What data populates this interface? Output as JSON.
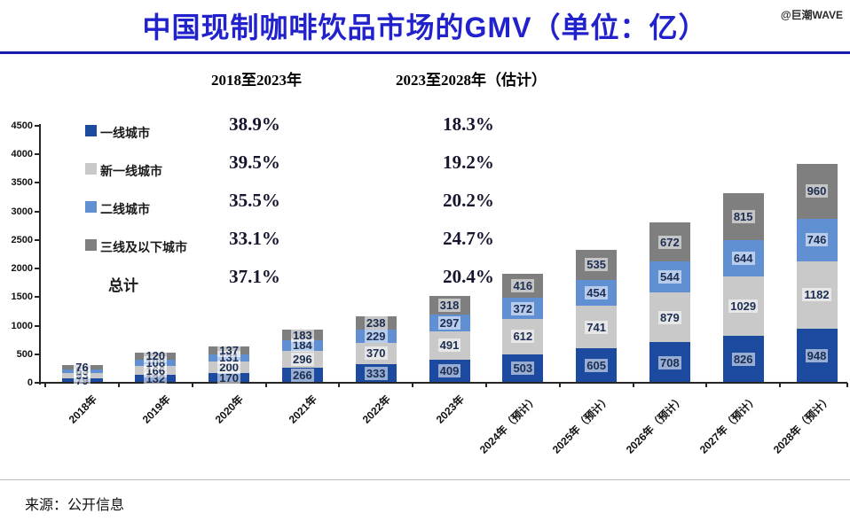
{
  "title": "中国现制咖啡饮品市场的GMV（单位：亿）",
  "watermark": "@巨潮WAVE",
  "source": "来源：公开信息",
  "cagr_table": {
    "col1_header": "2018至2023年",
    "col2_header": "2023至2028年（估计）",
    "rows": [
      {
        "label": "一线城市",
        "swatch": "#1B4A9E",
        "cagr_2018_2023": "38.9%",
        "cagr_2023_2028": "18.3%"
      },
      {
        "label": "新一线城市",
        "swatch": "#C9C9C9",
        "cagr_2018_2023": "39.5%",
        "cagr_2023_2028": "19.2%"
      },
      {
        "label": "二线城市",
        "swatch": "#6190D2",
        "cagr_2018_2023": "35.5%",
        "cagr_2023_2028": "20.2%"
      },
      {
        "label": "三线及以下城市",
        "swatch": "#7F7F7F",
        "cagr_2018_2023": "33.1%",
        "cagr_2023_2028": "24.7%"
      },
      {
        "label": "总计",
        "swatch": null,
        "cagr_2018_2023": "37.1%",
        "cagr_2023_2028": "20.4%"
      }
    ]
  },
  "chart_data": {
    "type": "bar",
    "stacked": true,
    "title": "中国现制咖啡饮品市场的GMV（单位：亿）",
    "unit": "亿",
    "categories": [
      "2018年",
      "2019年",
      "2020年",
      "2021年",
      "2022年",
      "2023年",
      "2024年（预计）",
      "2025年（预计）",
      "2026年（预计）",
      "2027年（预计）",
      "2028年（预计）"
    ],
    "series": [
      {
        "name": "一线城市",
        "color": "#1B4A9E",
        "values": [
          79,
          132,
          170,
          266,
          333,
          409,
          503,
          605,
          708,
          826,
          948
        ]
      },
      {
        "name": "新一线城市",
        "color": "#C9C9C9",
        "values": [
          93,
          166,
          200,
          296,
          370,
          491,
          612,
          741,
          879,
          1029,
          1182
        ]
      },
      {
        "name": "二线城市",
        "color": "#6190D2",
        "values": [
          65,
          108,
          131,
          184,
          229,
          297,
          372,
          454,
          544,
          644,
          746
        ]
      },
      {
        "name": "三线及以下城市",
        "color": "#7F7F7F",
        "values": [
          76,
          120,
          137,
          183,
          238,
          318,
          416,
          535,
          672,
          815,
          960
        ]
      }
    ],
    "totals": [
      313,
      526,
      638,
      929,
      1170,
      1515,
      1903,
      2335,
      2803,
      3314,
      3836
    ],
    "ylim": [
      0,
      4500
    ],
    "ytick_step": 500,
    "grid": false,
    "data_labels": true,
    "legend_position": "upper-left"
  }
}
